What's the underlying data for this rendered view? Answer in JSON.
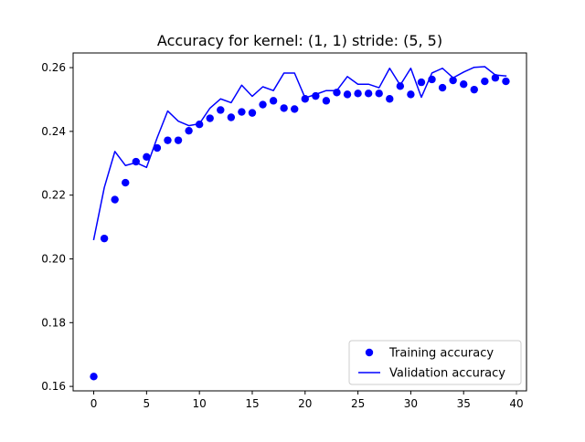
{
  "chart_data": {
    "type": "line",
    "title": "Accuracy for kernel: (1, 1) stride: (5, 5)",
    "xlabel": "",
    "ylabel": "",
    "xlim": [
      -1.95,
      40.95
    ],
    "ylim": [
      0.1586,
      0.2646
    ],
    "xticks": [
      0,
      5,
      10,
      15,
      20,
      25,
      30,
      35,
      40
    ],
    "yticks": [
      0.16,
      0.18,
      0.2,
      0.22,
      0.24,
      0.26
    ],
    "ytick_labels": [
      "0.16",
      "0.18",
      "0.20",
      "0.22",
      "0.24",
      "0.26"
    ],
    "grid": false,
    "legend_position": "lower-right",
    "x": [
      0,
      1,
      2,
      3,
      4,
      5,
      6,
      7,
      8,
      9,
      10,
      11,
      12,
      13,
      14,
      15,
      16,
      17,
      18,
      19,
      20,
      21,
      22,
      23,
      24,
      25,
      26,
      27,
      28,
      29,
      30,
      31,
      32,
      33,
      34,
      35,
      36,
      37,
      38,
      39
    ],
    "series": [
      {
        "name": "Training accuracy",
        "style": "markers",
        "color": "#0000ff",
        "values": [
          0.1631,
          0.2064,
          0.2186,
          0.2239,
          0.2305,
          0.232,
          0.2348,
          0.2372,
          0.2372,
          0.2402,
          0.2422,
          0.2441,
          0.2467,
          0.2444,
          0.2461,
          0.2458,
          0.2484,
          0.2496,
          0.2473,
          0.247,
          0.2502,
          0.2511,
          0.2496,
          0.2522,
          0.2516,
          0.2519,
          0.2519,
          0.2519,
          0.2502,
          0.2542,
          0.2516,
          0.2554,
          0.2563,
          0.2537,
          0.256,
          0.2548,
          0.2531,
          0.2557,
          0.2568,
          0.2557
        ]
      },
      {
        "name": "Validation accuracy",
        "style": "line",
        "color": "#0000ff",
        "values": [
          0.2061,
          0.2224,
          0.2337,
          0.2293,
          0.2302,
          0.2287,
          0.238,
          0.2464,
          0.2432,
          0.2418,
          0.2424,
          0.2473,
          0.2502,
          0.249,
          0.2545,
          0.251,
          0.254,
          0.2528,
          0.2583,
          0.2583,
          0.2505,
          0.2516,
          0.2528,
          0.2528,
          0.2572,
          0.2548,
          0.2548,
          0.2537,
          0.2598,
          0.2545,
          0.2598,
          0.2507,
          0.2583,
          0.2598,
          0.2568,
          0.2586,
          0.2601,
          0.2603,
          0.2577,
          0.2574
        ]
      }
    ]
  }
}
